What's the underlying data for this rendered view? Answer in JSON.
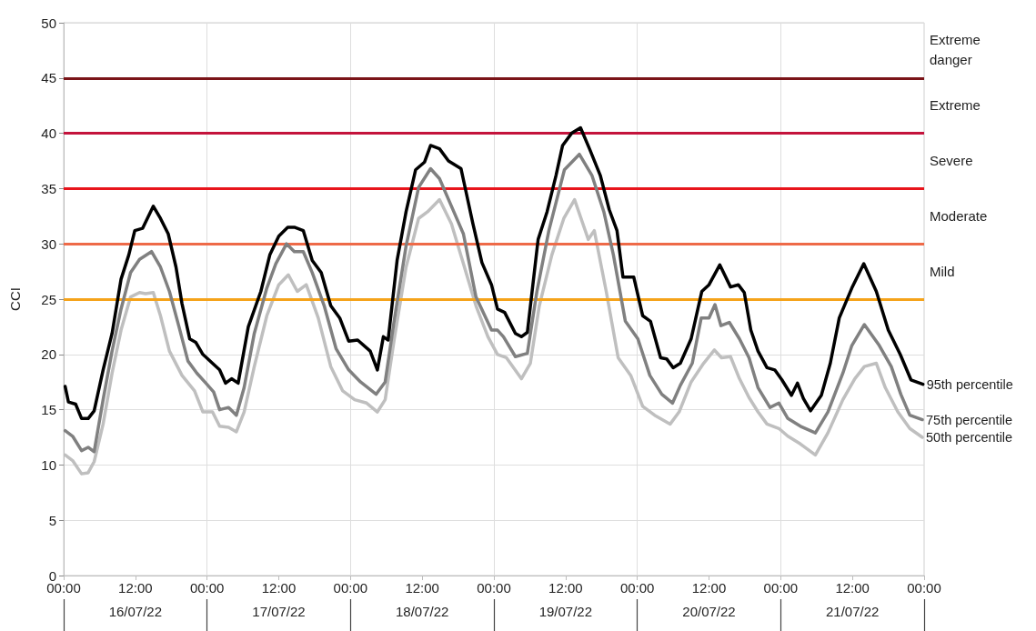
{
  "chart_data": {
    "type": "line",
    "ylabel": "CCI",
    "xlim": [
      "--07-16T00:00",
      "--07-22T00:00"
    ],
    "xticks": [
      {
        "value": "--07-16T00:00",
        "label": "00:00"
      },
      {
        "value": "--07-16T12:00",
        "label": "12:00"
      },
      {
        "value": "--07-17T00:00",
        "label": "00:00"
      },
      {
        "value": "--07-17T12:00",
        "label": "12:00"
      },
      {
        "value": "--07-18T00:00",
        "label": "00:00"
      },
      {
        "value": "--07-18T12:00",
        "label": "12:00"
      },
      {
        "value": "--07-19T00:00",
        "label": "00:00"
      },
      {
        "value": "--07-19T12:00",
        "label": "12:00"
      },
      {
        "value": "--07-20T00:00",
        "label": "00:00"
      },
      {
        "value": "--07-20T12:00",
        "label": "12:00"
      },
      {
        "value": "--07-21T00:00",
        "label": "00:00"
      },
      {
        "value": "--07-21T12:00",
        "label": "12:00"
      },
      {
        "value": "--07-22T00:00",
        "label": "00:00"
      }
    ],
    "x2lim": [
      "--07-16T00:00",
      "--07-22T00:00"
    ],
    "x2ticks": [
      {
        "value": "--07-16T00:00",
        "label": null
      },
      {
        "value": "--07-16T12:00",
        "label": "16/07/22"
      },
      {
        "value": "--07-17T00:00",
        "label": null
      },
      {
        "value": "--07-17T12:00",
        "label": "17/07/22"
      },
      {
        "value": "--07-18T00:00",
        "label": null
      },
      {
        "value": "--07-18T12:00",
        "label": "18/07/22"
      },
      {
        "value": "--07-19T00:00",
        "label": null
      },
      {
        "value": "--07-19T12:00",
        "label": "19/07/22"
      },
      {
        "value": "--07-20T00:00",
        "label": null
      },
      {
        "value": "--07-20T12:00",
        "label": "20/07/22"
      },
      {
        "value": "--07-21T00:00",
        "label": null
      },
      {
        "value": "--07-21T12:00",
        "label": "21/07/22"
      },
      {
        "value": "--07-22T00:00",
        "label": null
      }
    ],
    "ylim": [
      0,
      50
    ],
    "yticks": [
      0,
      5,
      10,
      15,
      20,
      25,
      30,
      35,
      40,
      45,
      50
    ],
    "grid": true,
    "legend": false,
    "marker": "none",
    "line_style": "solid",
    "ref_lines": [
      {
        "axis": "y",
        "value": 25,
        "label": "Mild",
        "color": "#f5a31a"
      },
      {
        "axis": "y",
        "value": 30,
        "label": "Moderate",
        "color": "#ee6a48"
      },
      {
        "axis": "y",
        "value": 35,
        "label": "Severe",
        "color": "#e8141c"
      },
      {
        "axis": "y",
        "value": 40,
        "label": "Extreme",
        "color": "#c4133c"
      },
      {
        "axis": "y",
        "value": 45,
        "label": "Extreme danger",
        "color": "#7a1418"
      }
    ],
    "series": [
      {
        "name": "95th percentile",
        "color": "#000000",
        "x": [
          "--07-16T00:15",
          "--07-16T00:48",
          "--07-16T02:00",
          "--07-16T03:00",
          "--07-16T04:06",
          "--07-16T05:06",
          "--07-16T06:36",
          "--07-16T08:06",
          "--07-16T09:36",
          "--07-16T10:54",
          "--07-16T11:54",
          "--07-16T13:12",
          "--07-16T15:00",
          "--07-16T16:12",
          "--07-16T17:30",
          "--07-16T18:48",
          "--07-16T19:48",
          "--07-16T21:06",
          "--07-16T22:06",
          "--07-16T23:18",
          "--07-17T00:54",
          "--07-17T02:06",
          "--07-17T03:06",
          "--07-17T04:06",
          "--07-17T05:12",
          "--07-17T06:54",
          "--07-17T09:00",
          "--07-17T10:30",
          "--07-17T12:00",
          "--07-17T13:30",
          "--07-17T14:36",
          "--07-17T16:06",
          "--07-17T17:36",
          "--07-17T19:06",
          "--07-17T20:42",
          "--07-17T22:12",
          "--07-17T23:42",
          "--07-18T01:12",
          "--07-18T03:18",
          "--07-18T04:30",
          "--07-18T05:30",
          "--07-18T06:18",
          "--07-18T07:48",
          "--07-18T09:18",
          "--07-18T10:54",
          "--07-18T12:24",
          "--07-18T13:24",
          "--07-18T14:54",
          "--07-18T16:24",
          "--07-18T18:30",
          "--07-18T20:30",
          "--07-18T22:00",
          "--07-18T23:36",
          "--07-19T00:36",
          "--07-19T01:48",
          "--07-19T03:36",
          "--07-19T04:36",
          "--07-19T05:36",
          "--07-19T07:24",
          "--07-19T08:54",
          "--07-19T10:24",
          "--07-19T11:30",
          "--07-19T13:00",
          "--07-19T14:30",
          "--07-19T16:00",
          "--07-19T17:48",
          "--07-19T19:18",
          "--07-19T20:36",
          "--07-19T21:36",
          "--07-19T23:24",
          "--07-20T00:54",
          "--07-20T02:12",
          "--07-20T03:54",
          "--07-20T04:54",
          "--07-20T06:00",
          "--07-20T07:12",
          "--07-20T09:00",
          "--07-20T10:48",
          "--07-20T12:00",
          "--07-20T13:48",
          "--07-20T15:36",
          "--07-20T16:54",
          "--07-20T17:54",
          "--07-20T19:00",
          "--07-20T20:12",
          "--07-20T21:42",
          "--07-20T23:00",
          "--07-21T00:12",
          "--07-21T01:48",
          "--07-21T02:48",
          "--07-21T03:48",
          "--07-21T05:00",
          "--07-21T06:48",
          "--07-21T08:18",
          "--07-21T09:48",
          "--07-21T11:54",
          "--07-21T13:54",
          "--07-21T16:00",
          "--07-21T18:00",
          "--07-21T20:00",
          "--07-21T21:48",
          "--07-21T23:48"
        ],
        "values": [
          17.1,
          15.7,
          15.5,
          14.2,
          14.2,
          14.9,
          18.6,
          21.9,
          26.8,
          29.0,
          31.2,
          31.4,
          33.4,
          32.3,
          30.9,
          27.9,
          24.6,
          21.4,
          21.1,
          20.0,
          19.2,
          18.6,
          17.4,
          17.8,
          17.4,
          22.5,
          25.7,
          29.0,
          30.7,
          31.5,
          31.5,
          31.2,
          28.5,
          27.4,
          24.4,
          23.3,
          21.2,
          21.3,
          20.3,
          18.6,
          21.6,
          21.3,
          28.5,
          32.9,
          36.7,
          37.4,
          38.9,
          38.6,
          37.5,
          36.8,
          31.8,
          28.3,
          26.3,
          24.1,
          23.8,
          21.9,
          21.6,
          22.0,
          30.4,
          32.9,
          36.2,
          38.9,
          40.0,
          40.5,
          38.6,
          36.2,
          33.1,
          31.2,
          27.0,
          27.0,
          23.5,
          23.0,
          19.7,
          19.6,
          18.8,
          19.2,
          21.4,
          25.7,
          26.3,
          28.1,
          26.1,
          26.3,
          25.6,
          22.2,
          20.3,
          18.8,
          18.6,
          17.7,
          16.3,
          17.4,
          16.0,
          14.9,
          16.3,
          19.2,
          23.3,
          26.0,
          28.2,
          25.7,
          22.2,
          20.0,
          17.7,
          17.3
        ]
      },
      {
        "name": "75th percentile",
        "color": "#808080",
        "x": [
          "--07-16T00:15",
          "--07-16T01:30",
          "--07-16T03:00",
          "--07-16T04:06",
          "--07-16T05:06",
          "--07-16T06:36",
          "--07-16T08:06",
          "--07-16T09:36",
          "--07-16T11:12",
          "--07-16T12:42",
          "--07-16T14:42",
          "--07-16T16:12",
          "--07-16T17:42",
          "--07-16T19:18",
          "--07-16T20:48",
          "--07-16T22:18",
          "--07-16T23:48",
          "--07-17T01:06",
          "--07-17T02:06",
          "--07-17T03:36",
          "--07-17T04:54",
          "--07-17T06:12",
          "--07-17T07:54",
          "--07-17T10:00",
          "--07-17T11:30",
          "--07-17T13:18",
          "--07-17T14:36",
          "--07-17T16:06",
          "--07-17T17:36",
          "--07-17T19:36",
          "--07-17T21:36",
          "--07-17T23:42",
          "--07-18T01:42",
          "--07-18T04:18",
          "--07-18T05:48",
          "--07-18T07:18",
          "--07-18T09:18",
          "--07-18T11:24",
          "--07-18T13:24",
          "--07-18T14:54",
          "--07-18T16:54",
          "--07-18T18:54",
          "--07-18T21:00",
          "--07-18T23:36",
          "--07-19T00:36",
          "--07-19T01:36",
          "--07-19T03:36",
          "--07-19T05:36",
          "--07-19T07:12",
          "--07-19T09:12",
          "--07-19T11:48",
          "--07-19T14:18",
          "--07-19T16:24",
          "--07-19T18:24",
          "--07-19T20:00",
          "--07-19T22:00",
          "--07-20T00:06",
          "--07-20T02:06",
          "--07-20T04:06",
          "--07-20T05:54",
          "--07-20T07:12",
          "--07-20T09:12",
          "--07-20T10:42",
          "--07-20T12:00",
          "--07-20T13:00",
          "--07-20T14:00",
          "--07-20T15:24",
          "--07-20T17:06",
          "--07-20T18:42",
          "--07-20T20:12",
          "--07-20T22:12",
          "--07-20T23:42",
          "--07-21T01:12",
          "--07-21T03:18",
          "--07-21T05:48",
          "--07-21T07:54",
          "--07-21T10:24",
          "--07-21T11:54",
          "--07-21T14:00",
          "--07-21T16:30",
          "--07-21T18:30",
          "--07-21T20:06",
          "--07-21T21:36",
          "--07-21T23:42"
        ],
        "values": [
          13.1,
          12.6,
          11.3,
          11.6,
          11.2,
          15.9,
          20.3,
          24.1,
          27.4,
          28.6,
          29.3,
          27.9,
          25.7,
          22.5,
          19.4,
          18.3,
          17.4,
          16.6,
          15.0,
          15.2,
          14.5,
          17.0,
          21.9,
          26.0,
          28.2,
          30.0,
          29.3,
          29.3,
          27.4,
          24.4,
          20.5,
          18.6,
          17.5,
          16.4,
          17.5,
          23.0,
          29.8,
          35.1,
          36.8,
          35.9,
          33.4,
          30.9,
          25.2,
          22.2,
          22.2,
          21.6,
          19.8,
          20.1,
          25.7,
          31.2,
          36.7,
          38.1,
          36.2,
          32.9,
          29.0,
          23.0,
          21.4,
          18.1,
          16.4,
          15.6,
          17.2,
          19.2,
          23.3,
          23.3,
          24.5,
          22.6,
          22.9,
          21.4,
          19.7,
          17.0,
          15.2,
          15.6,
          14.2,
          13.5,
          12.9,
          14.8,
          18.3,
          20.8,
          22.7,
          20.8,
          18.9,
          16.4,
          14.5,
          14.1
        ]
      },
      {
        "name": "50th percentile",
        "color": "#bfbfbf",
        "x": [
          "--07-16T00:15",
          "--07-16T01:30",
          "--07-16T03:00",
          "--07-16T04:06",
          "--07-16T05:06",
          "--07-16T06:36",
          "--07-16T08:06",
          "--07-16T09:36",
          "--07-16T11:12",
          "--07-16T12:42",
          "--07-16T13:42",
          "--07-16T15:00",
          "--07-16T16:12",
          "--07-16T17:42",
          "--07-16T19:48",
          "--07-16T21:54",
          "--07-16T23:18",
          "--07-17T00:54",
          "--07-17T02:06",
          "--07-17T03:36",
          "--07-17T04:54",
          "--07-17T06:12",
          "--07-17T07:54",
          "--07-17T10:00",
          "--07-17T12:00",
          "--07-17T13:36",
          "--07-17T15:06",
          "--07-17T16:36",
          "--07-17T18:36",
          "--07-17T20:42",
          "--07-17T22:42",
          "--07-18T00:42",
          "--07-18T02:42",
          "--07-18T04:30",
          "--07-18T05:48",
          "--07-18T07:18",
          "--07-18T09:18",
          "--07-18T11:24",
          "--07-18T12:54",
          "--07-18T14:54",
          "--07-18T16:54",
          "--07-18T18:54",
          "--07-18T21:00",
          "--07-18T23:00",
          "--07-19T00:36",
          "--07-19T02:06",
          "--07-19T04:36",
          "--07-19T06:06",
          "--07-19T07:36",
          "--07-19T09:42",
          "--07-19T11:42",
          "--07-19T13:30",
          "--07-19T15:48",
          "--07-19T16:48",
          "--07-19T18:48",
          "--07-19T20:48",
          "--07-19T22:54",
          "--07-20T00:54",
          "--07-20T02:54",
          "--07-20T05:30",
          "--07-20T07:00",
          "--07-20T09:00",
          "--07-20T11:06",
          "--07-20T12:54",
          "--07-20T14:06",
          "--07-20T15:36",
          "--07-20T17:06",
          "--07-20T18:42",
          "--07-20T20:12",
          "--07-20T21:42",
          "--07-20T23:42",
          "--07-21T01:12",
          "--07-21T03:18",
          "--07-21T05:48",
          "--07-21T07:54",
          "--07-21T10:24",
          "--07-21T12:24",
          "--07-21T14:00",
          "--07-21T16:00",
          "--07-21T17:30",
          "--07-21T19:36",
          "--07-21T21:36",
          "--07-21T23:42"
        ],
        "values": [
          10.9,
          10.4,
          9.2,
          9.3,
          10.3,
          13.7,
          18.3,
          22.2,
          25.2,
          25.6,
          25.5,
          25.6,
          23.5,
          20.3,
          18.1,
          16.7,
          14.8,
          14.8,
          13.5,
          13.4,
          13.0,
          14.8,
          18.9,
          23.5,
          26.3,
          27.2,
          25.7,
          26.3,
          23.3,
          18.9,
          16.7,
          15.9,
          15.6,
          14.8,
          15.9,
          21.3,
          27.9,
          32.3,
          32.9,
          34.0,
          31.8,
          28.2,
          24.4,
          21.6,
          20.0,
          19.7,
          17.8,
          19.2,
          24.4,
          29.0,
          32.3,
          34.0,
          30.4,
          31.2,
          25.7,
          19.7,
          18.1,
          15.3,
          14.5,
          13.7,
          14.8,
          17.5,
          19.2,
          20.4,
          19.7,
          19.8,
          17.8,
          16.1,
          14.8,
          13.7,
          13.3,
          12.6,
          11.9,
          10.9,
          12.9,
          15.9,
          17.8,
          18.9,
          19.2,
          17.0,
          14.8,
          13.3,
          12.5
        ]
      }
    ]
  }
}
